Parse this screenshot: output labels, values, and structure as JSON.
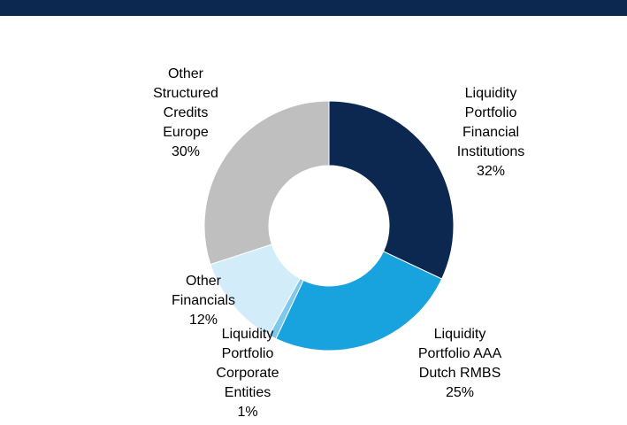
{
  "chart_data": {
    "type": "donut",
    "categories": [
      "Liquidity Portfolio Financial Institutions",
      "Liquidity Portfolio AAA Dutch RMBS",
      "Liquidity Portfolio Corporate Entities",
      "Other Financials",
      "Other Structured Credits Europe"
    ],
    "values": [
      32,
      25,
      1,
      12,
      30
    ],
    "value_labels": [
      "32%",
      "25%",
      "1%",
      "12%",
      "30%"
    ],
    "colors": [
      "#0c2850",
      "#19a3de",
      "#7ec8ec",
      "#d2edf9",
      "#bfbfbf"
    ]
  }
}
